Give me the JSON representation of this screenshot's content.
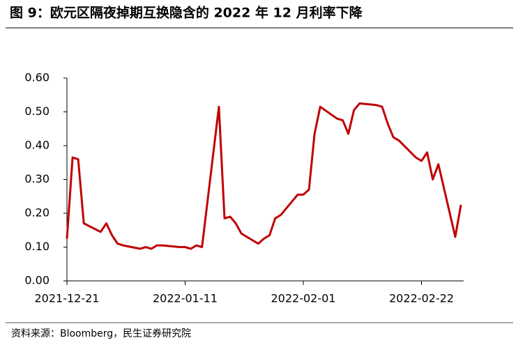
{
  "title": "图 9：欧元区隔夜掉期互换隐含的 2022 年 12 月利率下降",
  "source": "资料来源：Bloomberg，民生证券研究院",
  "chart_data": {
    "type": "line",
    "x": [
      "2021-12-21",
      "2021-12-22",
      "2021-12-23",
      "2021-12-24",
      "2021-12-27",
      "2021-12-28",
      "2021-12-29",
      "2021-12-30",
      "2021-12-31",
      "2022-01-03",
      "2022-01-04",
      "2022-01-05",
      "2022-01-06",
      "2022-01-07",
      "2022-01-10",
      "2022-01-11",
      "2022-01-12",
      "2022-01-13",
      "2022-01-14",
      "2022-01-17",
      "2022-01-18",
      "2022-01-19",
      "2022-01-20",
      "2022-01-21",
      "2022-01-24",
      "2022-01-25",
      "2022-01-26",
      "2022-01-27",
      "2022-01-28",
      "2022-01-31",
      "2022-02-01",
      "2022-02-02",
      "2022-02-03",
      "2022-02-04",
      "2022-02-07",
      "2022-02-08",
      "2022-02-09",
      "2022-02-10",
      "2022-02-11",
      "2022-02-14",
      "2022-02-15",
      "2022-02-16",
      "2022-02-17",
      "2022-02-18",
      "2022-02-21",
      "2022-02-22",
      "2022-02-23",
      "2022-02-24",
      "2022-02-25",
      "2022-02-28",
      "2022-03-01"
    ],
    "series": [
      {
        "color": "#c00000",
        "values": [
          0.125,
          0.365,
          0.36,
          0.17,
          0.145,
          0.17,
          0.135,
          0.11,
          0.105,
          0.095,
          0.1,
          0.095,
          0.105,
          0.105,
          0.1,
          0.1,
          0.095,
          0.105,
          0.1,
          0.515,
          0.185,
          0.19,
          0.17,
          0.14,
          0.11,
          0.125,
          0.135,
          0.185,
          0.195,
          0.255,
          0.255,
          0.27,
          0.435,
          0.515,
          0.48,
          0.475,
          0.435,
          0.505,
          0.525,
          0.52,
          0.515,
          0.465,
          0.425,
          0.415,
          0.365,
          0.355,
          0.38,
          0.3,
          0.345,
          0.13,
          0.225
        ]
      }
    ],
    "xlim": [
      "2021-12-21",
      "2022-03-01"
    ],
    "xticks": [
      "2021-12-21",
      "2022-01-11",
      "2022-02-01",
      "2022-02-22"
    ],
    "ylim": [
      0,
      0.6
    ],
    "yticks": [
      {
        "value": 0,
        "label": "0.00"
      },
      {
        "value": 0.1,
        "label": "0.10"
      },
      {
        "value": 0.2,
        "label": "0.20"
      },
      {
        "value": 0.3,
        "label": "0.30"
      },
      {
        "value": 0.4,
        "label": "0.40"
      },
      {
        "value": 0.5,
        "label": "0.50"
      },
      {
        "value": 0.6,
        "label": "0.60"
      }
    ]
  }
}
